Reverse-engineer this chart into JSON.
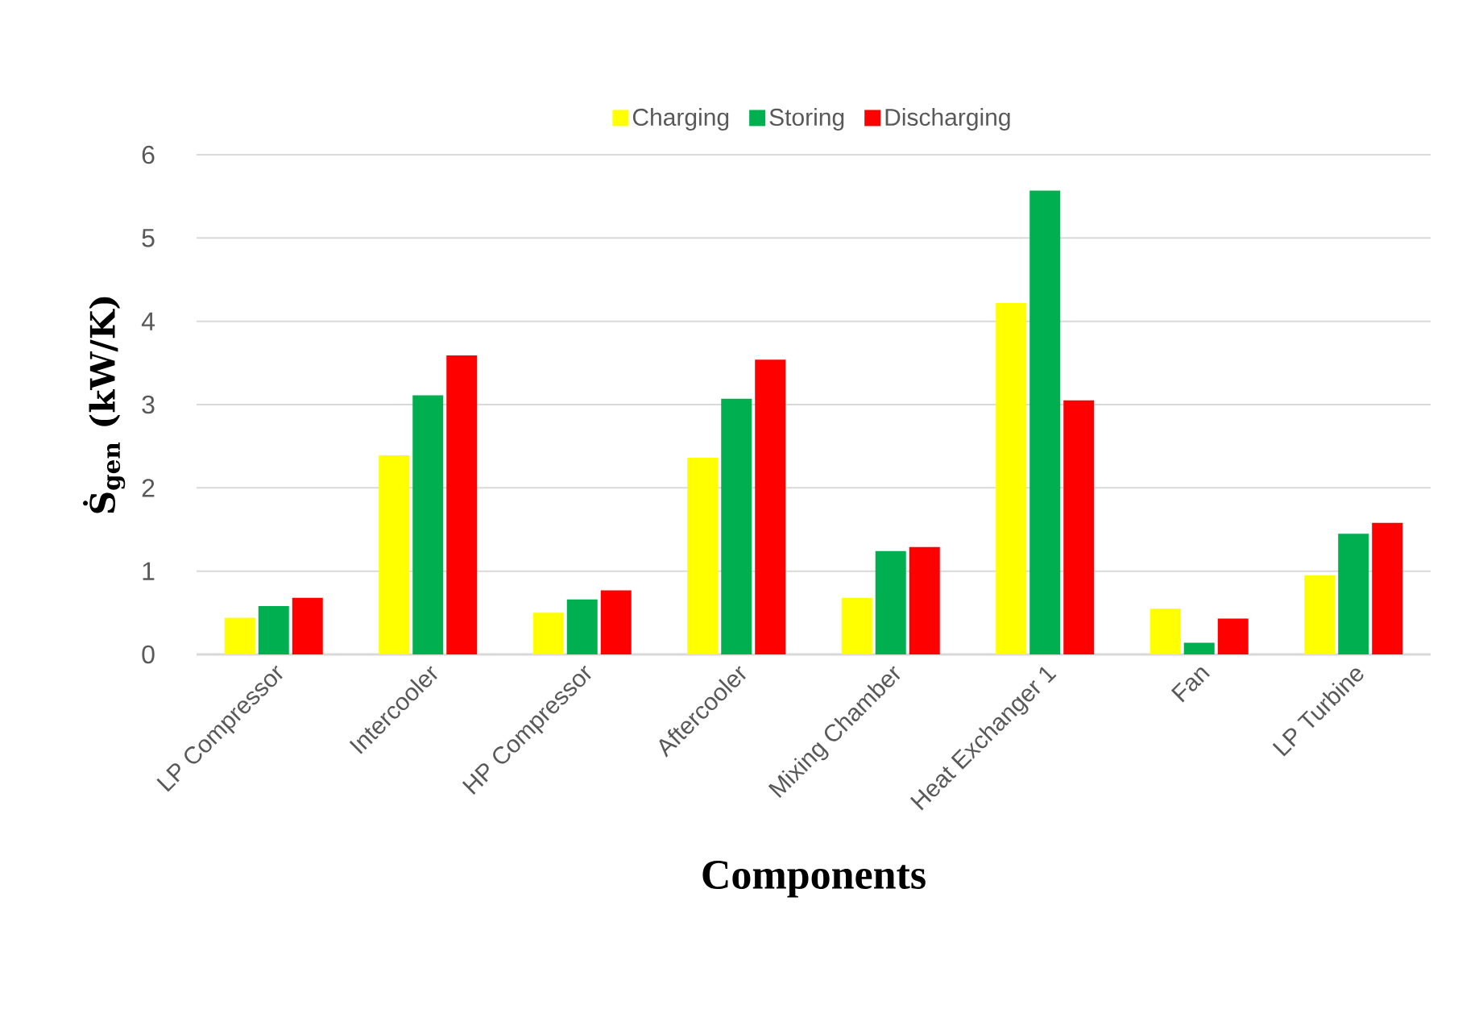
{
  "chart_data": {
    "type": "bar",
    "xlabel": "Components",
    "ylabel": "Ṡ$_{gen}$  (kW/K)",
    "categories": [
      "LP Compressor",
      "Intercooler",
      "HP Compressor",
      "Aftercooler",
      "Mixing Chamber",
      "Heat Exchanger 1",
      "Fan",
      "LP Turbine"
    ],
    "series": [
      {
        "name": "Charging",
        "color": "#ffff00",
        "values": [
          0.44,
          2.39,
          0.5,
          2.36,
          0.68,
          4.22,
          0.55,
          0.95
        ]
      },
      {
        "name": "Storing",
        "color": "#00b050",
        "values": [
          0.58,
          3.11,
          0.66,
          3.07,
          1.24,
          5.57,
          0.14,
          1.45
        ]
      },
      {
        "name": "Discharging",
        "color": "#ff0000",
        "values": [
          0.68,
          3.59,
          0.77,
          3.54,
          1.29,
          3.05,
          0.43,
          1.58
        ]
      }
    ],
    "ylim": [
      0,
      6
    ],
    "yticks": [
      0,
      1,
      2,
      3,
      4,
      5,
      6
    ],
    "grid": "y",
    "legend": "top"
  }
}
